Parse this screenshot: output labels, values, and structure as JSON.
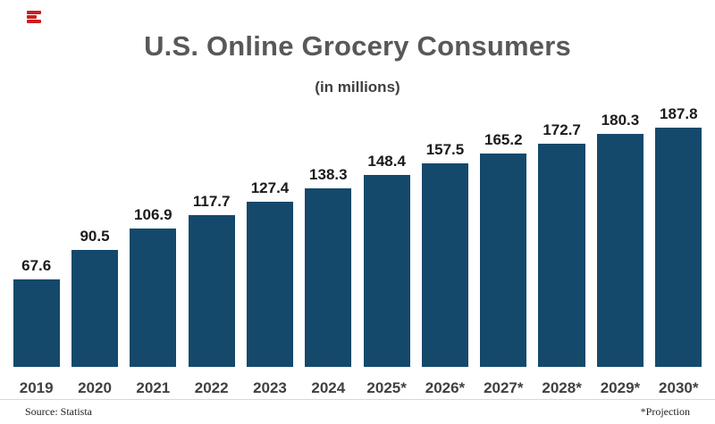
{
  "page": {
    "title": "U.S. Online Grocery Consumers",
    "subtitle": "(in millions)"
  },
  "footer": {
    "source": "Source: Statista",
    "projection_note": "*Projection"
  },
  "chart_data": {
    "type": "bar",
    "title": "U.S. Online Grocery Consumers",
    "subtitle": "(in millions)",
    "categories": [
      "2019",
      "2020",
      "2021",
      "2022",
      "2023",
      "2024",
      "2025*",
      "2026*",
      "2027*",
      "2028*",
      "2029*",
      "2030*"
    ],
    "values": [
      67.6,
      90.5,
      106.9,
      117.7,
      127.4,
      138.3,
      148.4,
      157.5,
      165.2,
      172.7,
      180.3,
      187.8
    ],
    "value_labels": true,
    "bar_color": "#14496B",
    "ylim": [
      0,
      200
    ],
    "grid": false,
    "legend": "none",
    "source": "Source: Statista",
    "annotation": "*Projection"
  }
}
